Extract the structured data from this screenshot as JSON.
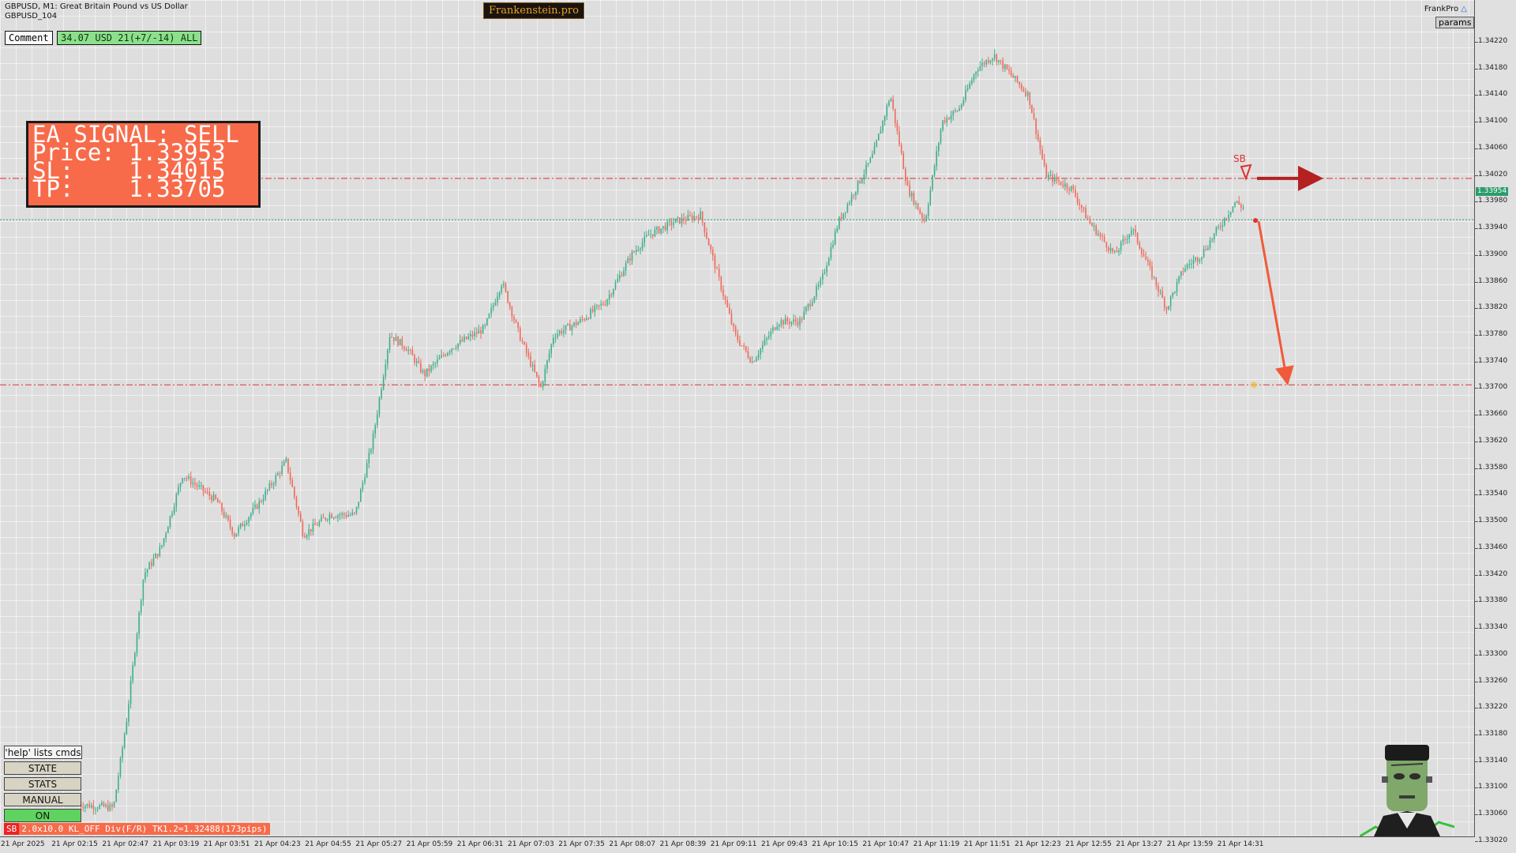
{
  "window": {
    "symbol_line": "GBPUSD, M1:  Great Britain Pound vs US Dollar",
    "chart_id": "GBPUSD_104",
    "brand": "Frankenstein.pro",
    "frankpro_label": "FrankPro",
    "params_label": "params"
  },
  "comment": {
    "label": "Comment",
    "value": "34.07 USD 21(+7/-14) ALL"
  },
  "signal": {
    "title": "EA SIGNAL: SELL",
    "price_line": "Price: 1.33953",
    "sl_line": "SL:    1.34015",
    "tp_line": "TP:    1.33705",
    "color": "#f76b4a"
  },
  "levels": {
    "current_price": "1.33954",
    "sl": 1.34015,
    "tp": 1.33705,
    "entry": 1.33953,
    "sl_color": "#e03030",
    "entry_color": "#2a9d6a"
  },
  "price_axis": [
    "1.34220",
    "1.34180",
    "1.34140",
    "1.34100",
    "1.34060",
    "1.34020",
    "1.33980",
    "1.33940",
    "1.33900",
    "1.33860",
    "1.33820",
    "1.33780",
    "1.33740",
    "1.33700",
    "1.33660",
    "1.33620",
    "1.33580",
    "1.33540",
    "1.33500",
    "1.33460",
    "1.33420",
    "1.33380",
    "1.33340",
    "1.33300",
    "1.33260",
    "1.33220",
    "1.33180",
    "1.33140",
    "1.33100",
    "1.33060",
    "1.33020"
  ],
  "time_axis": [
    "21 Apr 2025",
    "21 Apr 02:15",
    "21 Apr 02:47",
    "21 Apr 03:19",
    "21 Apr 03:51",
    "21 Apr 04:23",
    "21 Apr 04:55",
    "21 Apr 05:27",
    "21 Apr 05:59",
    "21 Apr 06:31",
    "21 Apr 07:03",
    "21 Apr 07:35",
    "21 Apr 08:07",
    "21 Apr 08:39",
    "21 Apr 09:11",
    "21 Apr 09:43",
    "21 Apr 10:15",
    "21 Apr 10:47",
    "21 Apr 11:19",
    "21 Apr 11:51",
    "21 Apr 12:23",
    "21 Apr 12:55",
    "21 Apr 13:27",
    "21 Apr 13:59",
    "21 Apr 14:31"
  ],
  "controls": {
    "help": "'help' lists cmds",
    "state": "STATE",
    "stats": "STATS",
    "manual": "MANUAL",
    "on": "ON"
  },
  "status": {
    "tag": "SB",
    "text": "2.0x10.0 KL_OFF Div(F/R) TK1.2=1.32488(173pips)"
  },
  "marker_label": "SB",
  "icons": {
    "mascot": "frankenstein-mascot-icon",
    "cap": "graduation-cap-icon"
  },
  "chart_data": {
    "type": "candlestick",
    "symbol": "GBPUSD",
    "timeframe": "M1",
    "ylim": [
      1.33,
      1.3424
    ],
    "path": [
      [
        0,
        1.33075
      ],
      [
        40,
        1.3307
      ],
      [
        55,
        1.332
      ],
      [
        75,
        1.3342
      ],
      [
        95,
        1.3346
      ],
      [
        120,
        1.3357
      ],
      [
        160,
        1.3353
      ],
      [
        180,
        1.3348
      ],
      [
        210,
        1.3353
      ],
      [
        240,
        1.3359
      ],
      [
        260,
        1.3348
      ],
      [
        290,
        1.3351
      ],
      [
        320,
        1.3351
      ],
      [
        340,
        1.3362
      ],
      [
        360,
        1.3378
      ],
      [
        380,
        1.3376
      ],
      [
        400,
        1.3372
      ],
      [
        430,
        1.3376
      ],
      [
        470,
        1.3379
      ],
      [
        490,
        1.3386
      ],
      [
        510,
        1.3378
      ],
      [
        535,
        1.337
      ],
      [
        550,
        1.3378
      ],
      [
        580,
        1.338
      ],
      [
        610,
        1.3383
      ],
      [
        640,
        1.339
      ],
      [
        660,
        1.3393
      ],
      [
        690,
        1.3395
      ],
      [
        720,
        1.3396
      ],
      [
        740,
        1.3387
      ],
      [
        760,
        1.3378
      ],
      [
        780,
        1.3374
      ],
      [
        810,
        1.338
      ],
      [
        835,
        1.338
      ],
      [
        860,
        1.3386
      ],
      [
        880,
        1.3395
      ],
      [
        900,
        1.34
      ],
      [
        920,
        1.3405
      ],
      [
        940,
        1.3414
      ],
      [
        960,
        1.34
      ],
      [
        980,
        1.3395
      ],
      [
        1000,
        1.341
      ],
      [
        1020,
        1.3412
      ],
      [
        1040,
        1.3418
      ],
      [
        1060,
        1.342
      ],
      [
        1080,
        1.3417
      ],
      [
        1100,
        1.3414
      ],
      [
        1120,
        1.3402
      ],
      [
        1150,
        1.34
      ],
      [
        1170,
        1.3395
      ],
      [
        1200,
        1.339
      ],
      [
        1220,
        1.3394
      ],
      [
        1240,
        1.3388
      ],
      [
        1260,
        1.3382
      ],
      [
        1280,
        1.3388
      ],
      [
        1300,
        1.339
      ],
      [
        1320,
        1.3394
      ],
      [
        1340,
        1.3398
      ],
      [
        1350,
        1.3397
      ]
    ]
  }
}
